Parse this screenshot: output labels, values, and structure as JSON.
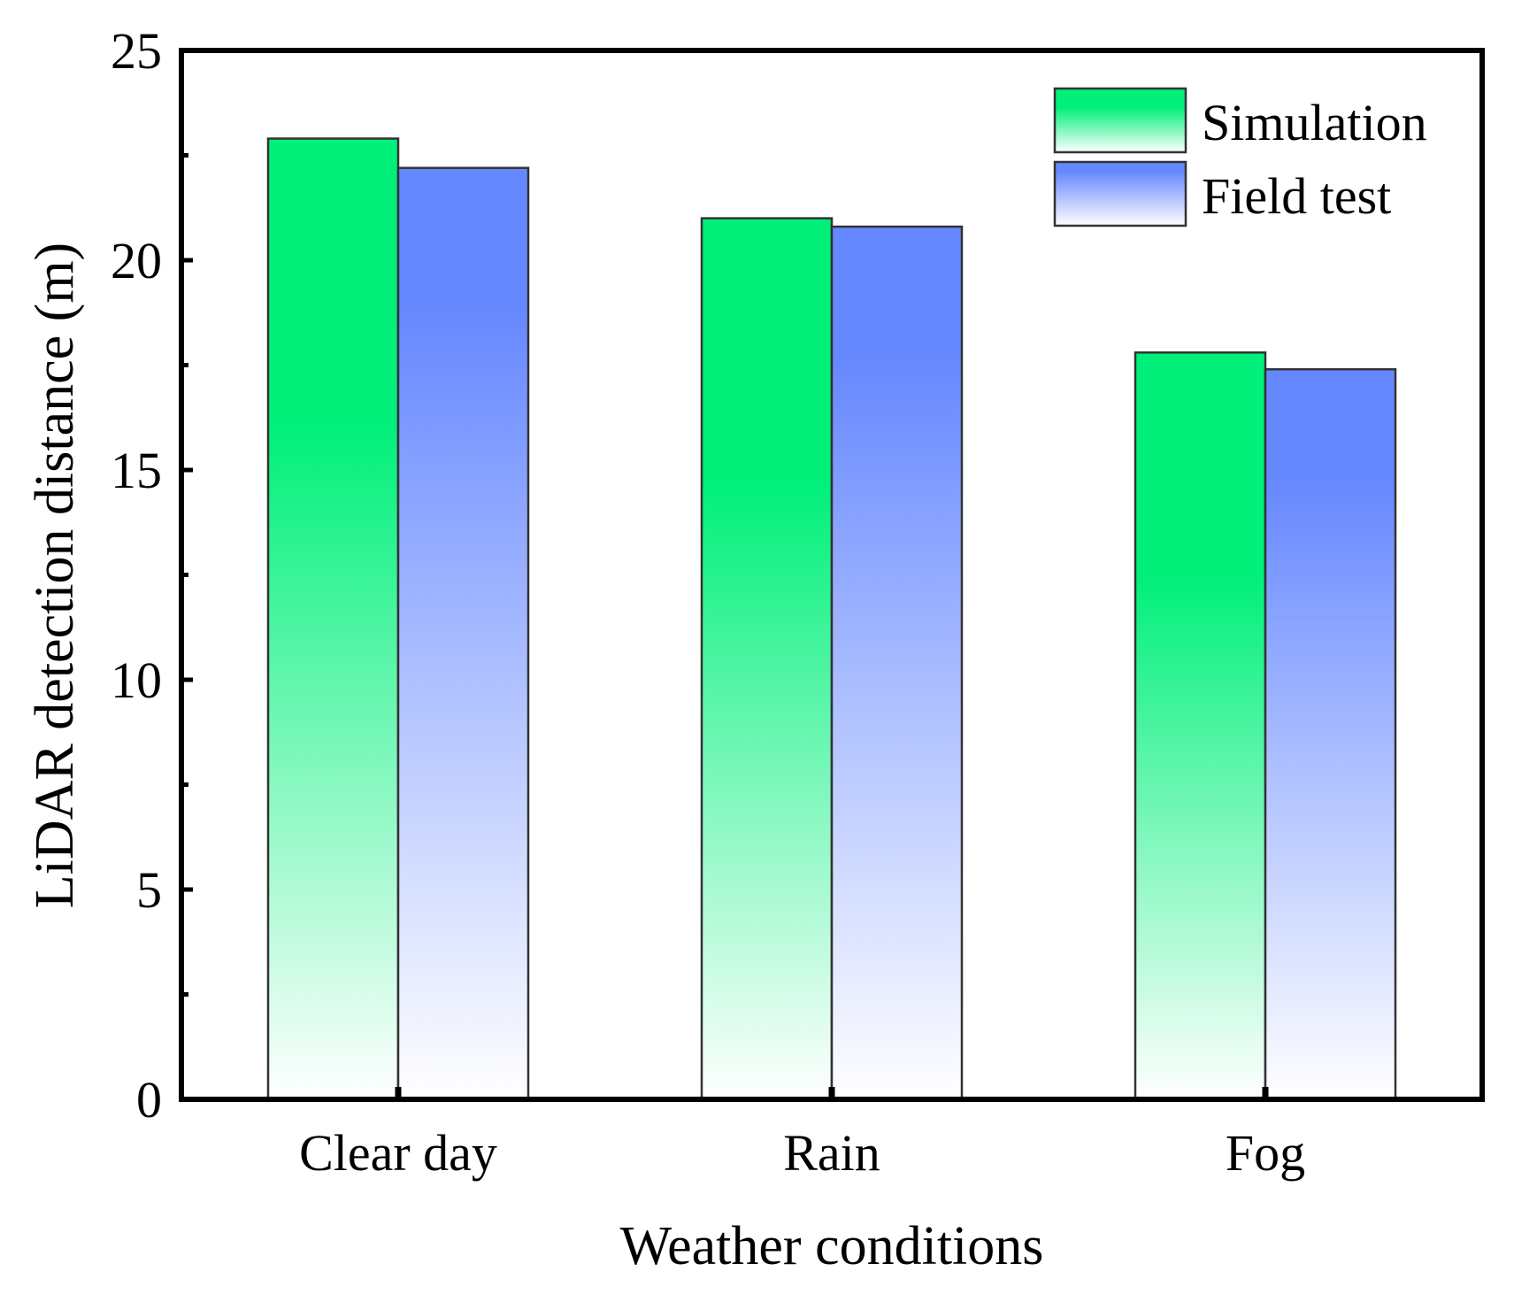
{
  "chart_data": {
    "type": "bar",
    "title": "",
    "xlabel": "Weather conditions",
    "ylabel": "LiDAR detection distance (m)",
    "categories": [
      "Clear day",
      "Rain",
      "Fog"
    ],
    "series": [
      {
        "name": "Simulation",
        "values": [
          22.9,
          21.0,
          17.8
        ],
        "color": "#00f07a"
      },
      {
        "name": "Field test",
        "values": [
          22.2,
          20.8,
          17.4
        ],
        "color": "#6688ff"
      }
    ],
    "ylim": [
      0,
      25
    ],
    "yticks": [
      "0",
      "5",
      "10",
      "15",
      "20",
      "25"
    ],
    "grid": false,
    "legend_position": "top-right"
  }
}
